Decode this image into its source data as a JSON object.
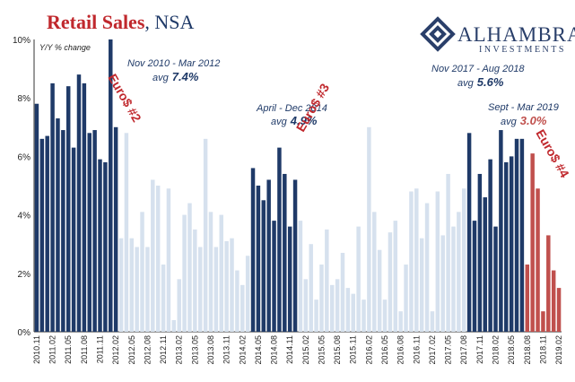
{
  "chart_data": {
    "type": "bar",
    "title": "Retail Sales",
    "subtitle": ", NSA",
    "ylabel": "Y/Y % change",
    "ylim": [
      0,
      10
    ],
    "yticks": [
      "0%",
      "2%",
      "4%",
      "6%",
      "8%",
      "10%"
    ],
    "start_month": "2010.11",
    "x_tick_labels": [
      "2010.11",
      "2011.02",
      "2011.05",
      "2011.08",
      "2011.11",
      "2012.02",
      "2012.05",
      "2012.08",
      "2012.11",
      "2013.02",
      "2013.05",
      "2013.08",
      "2013.11",
      "2014.02",
      "2014.05",
      "2014.08",
      "2014.11",
      "2015.02",
      "2015.05",
      "2015.08",
      "2015.11",
      "2016.02",
      "2016.05",
      "2016.08",
      "2016.11",
      "2017.02",
      "2017.05",
      "2017.08",
      "2017.11",
      "2018.02",
      "2018.05",
      "2018.08",
      "2018.11",
      "2019.02"
    ],
    "values": [
      7.8,
      6.6,
      6.7,
      8.5,
      7.3,
      6.9,
      8.4,
      6.3,
      8.8,
      8.5,
      6.8,
      6.9,
      5.9,
      5.8,
      10.0,
      7.0,
      3.2,
      6.8,
      3.2,
      2.9,
      4.1,
      2.9,
      5.2,
      5.0,
      2.3,
      4.9,
      0.4,
      1.8,
      4.0,
      4.4,
      3.5,
      2.9,
      6.6,
      4.1,
      2.9,
      4.0,
      3.1,
      3.2,
      2.1,
      1.6,
      2.6,
      5.6,
      5.0,
      4.5,
      5.2,
      3.8,
      6.3,
      5.4,
      3.6,
      5.2,
      3.8,
      1.8,
      3.0,
      1.1,
      2.3,
      3.5,
      1.6,
      1.8,
      2.7,
      1.5,
      1.3,
      3.6,
      1.1,
      7.0,
      4.1,
      2.8,
      1.1,
      3.4,
      3.8,
      0.7,
      2.3,
      4.8,
      4.9,
      3.2,
      4.4,
      0.7,
      4.8,
      3.3,
      5.4,
      3.6,
      4.1,
      4.9,
      6.8,
      3.8,
      5.4,
      4.6,
      5.9,
      3.6,
      6.9,
      5.8,
      6.0,
      6.6,
      6.6,
      2.3,
      6.1,
      4.9,
      0.7,
      3.3,
      2.1,
      1.5
    ],
    "series": [
      {
        "name": "highlight-euro2-period",
        "color": "#1f3a68"
      },
      {
        "name": "other",
        "color": "#d6e1ee"
      },
      {
        "name": "highlight-2014",
        "color": "#1f3a68"
      },
      {
        "name": "highlight-2018",
        "color": "#1f3a68"
      },
      {
        "name": "highlight-2019",
        "color": "#c0504d"
      }
    ],
    "segments": [
      {
        "from": 0,
        "to": 15,
        "series": 0
      },
      {
        "from": 16,
        "to": 40,
        "series": 1
      },
      {
        "from": 41,
        "to": 49,
        "series": 2
      },
      {
        "from": 50,
        "to": 81,
        "series": 1
      },
      {
        "from": 82,
        "to": 92,
        "series": 3
      },
      {
        "from": 93,
        "to": 99,
        "series": 4
      }
    ],
    "annotations": {
      "period1": {
        "text": "Nov 2010 - Mar 2012",
        "avg_label": "avg",
        "avg_value": "7.4%"
      },
      "period2": {
        "text": "April - Dec 2014",
        "avg_label": "avg",
        "avg_value": "4.9%"
      },
      "period3": {
        "text": "Nov 2017 - Aug 2018",
        "avg_label": "avg",
        "avg_value": "5.6%"
      },
      "period4": {
        "text": "Sept - Mar 2019",
        "avg_label": "avg",
        "avg_value": "3.0%"
      },
      "euro2": "Euro$ #2",
      "euro3": "Euro$ #3",
      "euro4": "Euro$ #4"
    },
    "grid": false
  },
  "logo": {
    "name": "ALHAMBRA",
    "sub": "INVESTMENTS"
  },
  "colors": {
    "dark": "#1f3a68",
    "light": "#d6e1ee",
    "red": "#c0504d",
    "title_red": "#c0282d"
  }
}
